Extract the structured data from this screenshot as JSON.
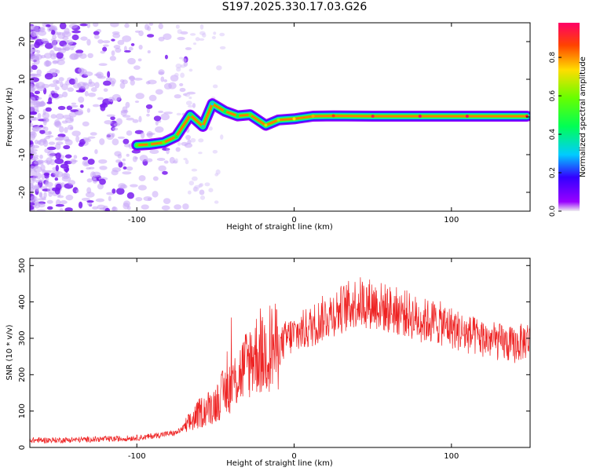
{
  "page": {
    "title": "S197.2025.330.17.03.G26"
  },
  "colors": {
    "series": "#ee2222",
    "background": "#ffffff",
    "axis": "#000000"
  },
  "chart_data": [
    {
      "type": "heatmap",
      "xlabel": "Height of straight line (km)",
      "ylabel": "Frequency (Hz)",
      "xlim": [
        -168,
        150
      ],
      "ylim": [
        -25,
        25
      ],
      "xticks": [
        -100,
        0,
        100
      ],
      "yticks": [
        -20,
        -10,
        0,
        10,
        20
      ],
      "colorbar": {
        "label": "Normalized spectral amplitude",
        "range": [
          0.0,
          0.98
        ],
        "ticks": [
          0.0,
          0.2,
          0.4,
          0.6,
          0.8
        ]
      },
      "ridge": [
        {
          "x": -100,
          "y": -7.5,
          "amp": 0.55
        },
        {
          "x": -92,
          "y": -7.3,
          "amp": 0.5
        },
        {
          "x": -83,
          "y": -6.8,
          "amp": 0.6
        },
        {
          "x": -75,
          "y": -5.2,
          "amp": 0.45
        },
        {
          "x": -66,
          "y": 0.5,
          "amp": 0.4
        },
        {
          "x": -58,
          "y": -2.5,
          "amp": 0.35
        },
        {
          "x": -52,
          "y": 3.5,
          "amp": 0.3
        },
        {
          "x": -44,
          "y": 1.5,
          "amp": 0.45
        },
        {
          "x": -36,
          "y": 0.3,
          "amp": 0.45
        },
        {
          "x": -28,
          "y": 0.6,
          "amp": 0.55
        },
        {
          "x": -18,
          "y": -2.2,
          "amp": 0.7
        },
        {
          "x": -10,
          "y": -0.8,
          "amp": 0.65
        },
        {
          "x": 0,
          "y": -0.5,
          "amp": 0.75
        },
        {
          "x": 12,
          "y": 0.2,
          "amp": 0.8
        },
        {
          "x": 25,
          "y": 0.3,
          "amp": 0.9
        },
        {
          "x": 50,
          "y": 0.2,
          "amp": 0.95
        },
        {
          "x": 80,
          "y": 0.2,
          "amp": 0.98
        },
        {
          "x": 110,
          "y": 0.2,
          "amp": 0.98
        },
        {
          "x": 148,
          "y": 0.2,
          "amp": 0.95
        }
      ]
    },
    {
      "type": "line",
      "xlabel": "Height of straight line (km)",
      "ylabel": "SNR (10 * v/v)",
      "xlim": [
        -168,
        150
      ],
      "ylim": [
        0,
        520
      ],
      "xticks": [
        -100,
        0,
        100
      ],
      "yticks": [
        0,
        100,
        200,
        300,
        400,
        500
      ],
      "series": [
        {
          "name": "SNR",
          "x": [
            -168,
            -150,
            -130,
            -110,
            -95,
            -85,
            -75,
            -68,
            -60,
            -50,
            -45,
            -40,
            -35,
            -30,
            -25,
            -20,
            -15,
            -10,
            -5,
            0,
            10,
            20,
            30,
            40,
            50,
            60,
            70,
            80,
            90,
            100,
            110,
            120,
            130,
            140,
            150
          ],
          "values": [
            20,
            20,
            22,
            24,
            28,
            35,
            40,
            60,
            95,
            120,
            150,
            170,
            200,
            230,
            260,
            250,
            280,
            270,
            300,
            310,
            330,
            360,
            380,
            400,
            395,
            380,
            370,
            350,
            345,
            330,
            310,
            300,
            290,
            280,
            300
          ]
        }
      ]
    }
  ]
}
